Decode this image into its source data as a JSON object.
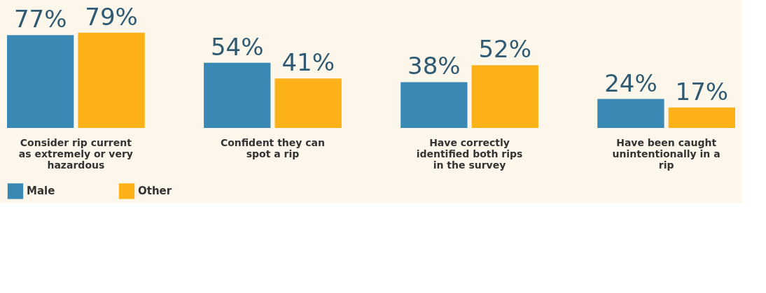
{
  "chart_data": {
    "type": "bar",
    "categories": [
      "Consider rip current as extremely or very hazardous",
      "Confident they can spot a rip",
      "Have correctly identified both rips in the survey",
      "Have been caught unintentionally in a rip"
    ],
    "series": [
      {
        "name": "Male",
        "color": "#3a89b4",
        "values": [
          77,
          54,
          38,
          24
        ],
        "value_labels": [
          "77%",
          "54%",
          "38%",
          "24%"
        ]
      },
      {
        "name": "Other",
        "color": "#fdb118",
        "values": [
          79,
          41,
          52,
          17
        ],
        "value_labels": [
          "79%",
          "41%",
          "52%",
          "17%"
        ]
      }
    ],
    "legend": "bottom left",
    "grid": false
  }
}
